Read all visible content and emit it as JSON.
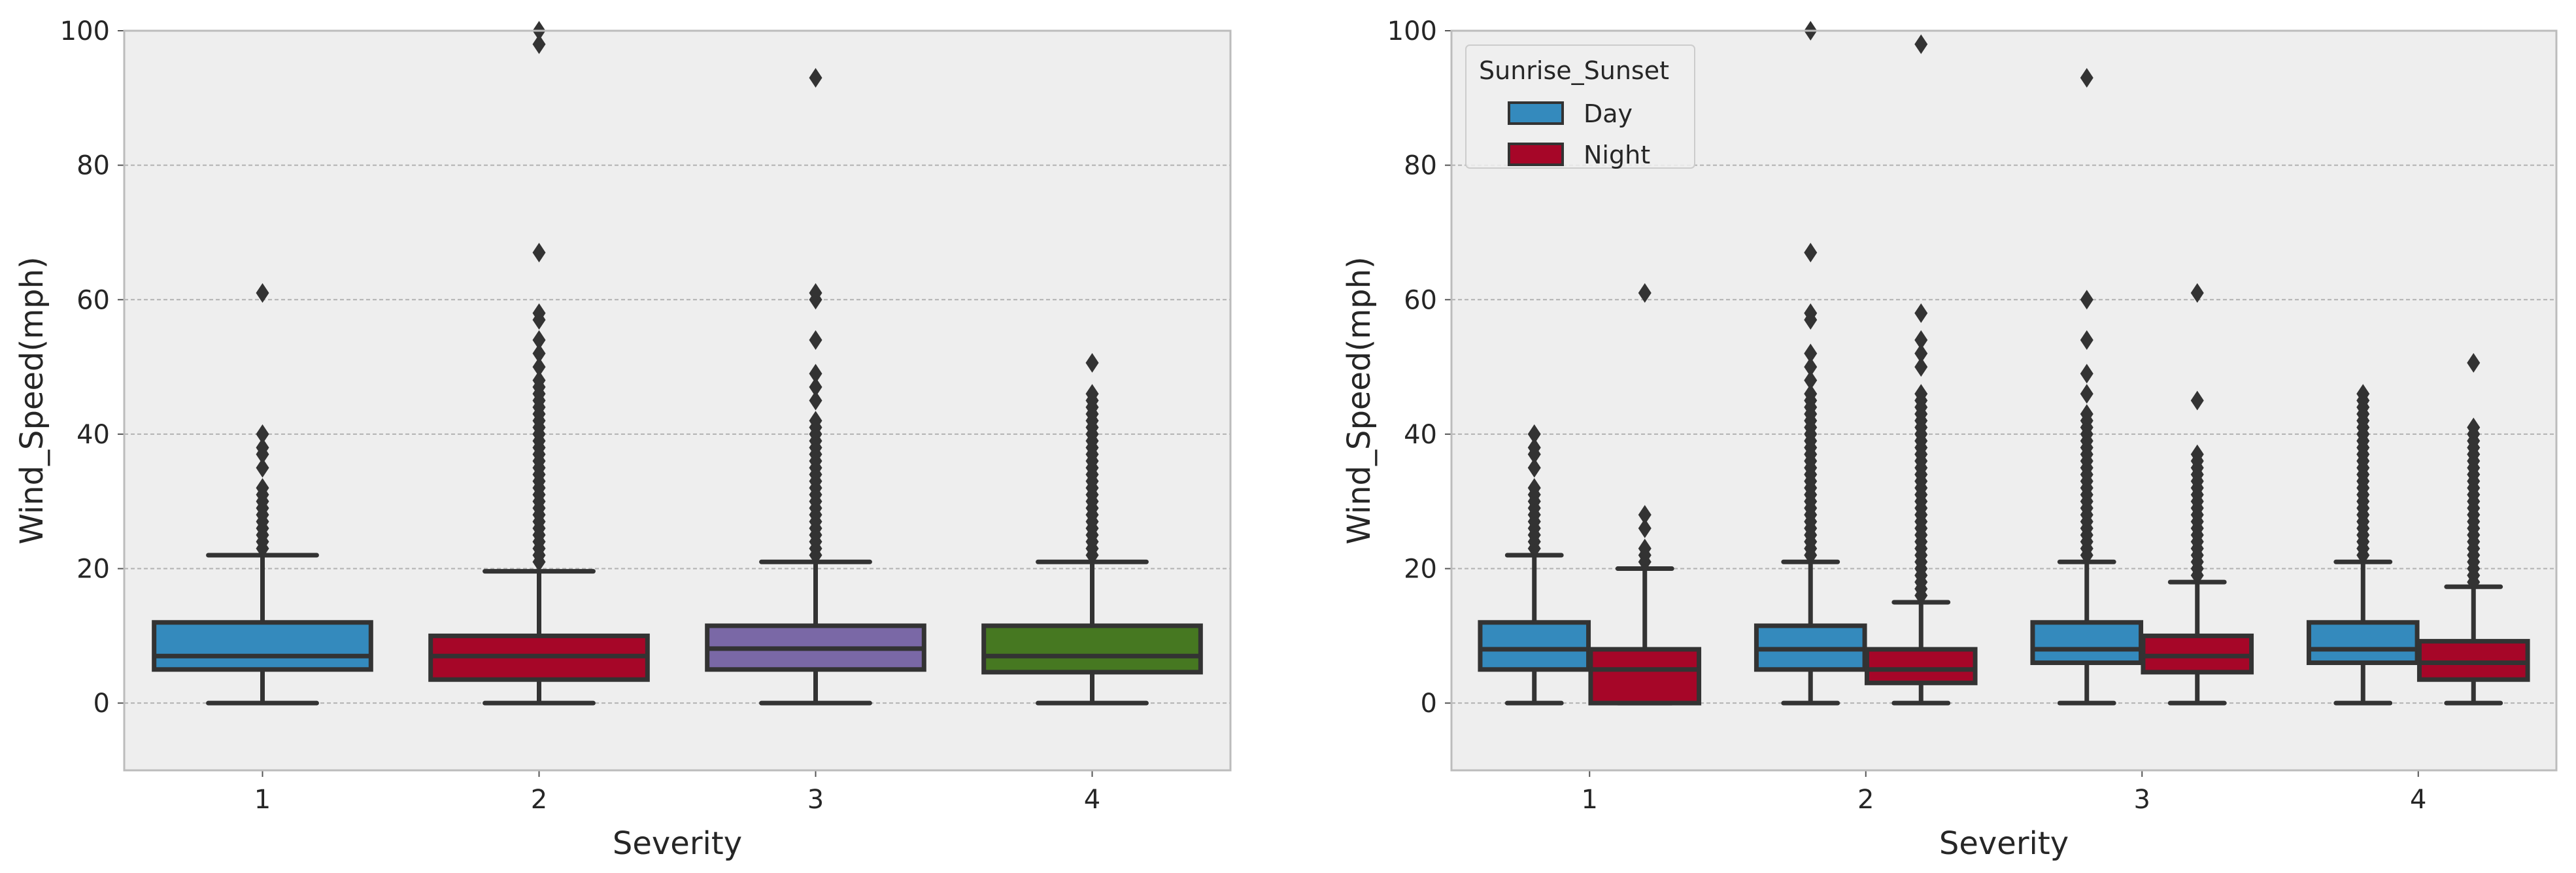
{
  "chart_data": [
    {
      "type": "box",
      "title": "",
      "xlabel": "Severity",
      "ylabel": "Wind_Speed(mph)",
      "categories": [
        "1",
        "2",
        "3",
        "4"
      ],
      "ylim": [
        -10,
        100
      ],
      "yticks": [
        0,
        20,
        40,
        60,
        80,
        100
      ],
      "grid": true,
      "legend": null,
      "series": [
        {
          "color": "#348abd",
          "boxes": [
            {
              "category": "1",
              "color": "#348abd",
              "whislo": 0,
              "q1": 5,
              "median": 7,
              "q3": 12,
              "whishi": 22,
              "fliers": [
                23,
                24,
                25,
                26,
                27,
                28,
                29,
                30,
                31,
                32,
                35,
                37,
                38,
                40,
                61
              ]
            },
            {
              "category": "2",
              "color": "#a60628",
              "whislo": 0,
              "q1": 3.5,
              "median": 7,
              "q3": 10,
              "whishi": 19.6,
              "fliers": [
                21,
                22,
                23,
                24,
                25,
                26,
                27,
                28,
                29,
                30,
                31,
                32,
                33,
                34,
                35,
                36,
                37,
                38,
                39,
                40,
                41,
                42,
                43,
                44,
                45,
                46,
                47,
                48,
                50,
                52,
                54,
                57,
                58,
                67,
                98,
                100
              ]
            },
            {
              "category": "3",
              "color": "#7a68a6",
              "whislo": 0,
              "q1": 5,
              "median": 8.1,
              "q3": 11.5,
              "whishi": 21,
              "fliers": [
                22,
                23,
                24,
                25,
                26,
                27,
                28,
                29,
                30,
                31,
                32,
                33,
                34,
                35,
                36,
                37,
                38,
                39,
                40,
                41,
                42,
                45,
                47,
                49,
                54,
                60,
                61,
                93
              ]
            },
            {
              "category": "4",
              "color": "#467821",
              "whislo": 0,
              "q1": 4.6,
              "median": 7,
              "q3": 11.5,
              "whishi": 21,
              "fliers": [
                22,
                23,
                24,
                25,
                26,
                27,
                28,
                29,
                30,
                31,
                32,
                33,
                34,
                35,
                36,
                37,
                38,
                39,
                40,
                41,
                42,
                43,
                44,
                45,
                46,
                50.6
              ]
            }
          ]
        }
      ]
    },
    {
      "type": "box",
      "title": "",
      "xlabel": "Severity",
      "ylabel": "Wind_Speed(mph)",
      "categories": [
        "1",
        "2",
        "3",
        "4"
      ],
      "ylim": [
        -10,
        100
      ],
      "yticks": [
        0,
        20,
        40,
        60,
        80,
        100
      ],
      "grid": true,
      "legend": {
        "title": "Sunrise_Sunset",
        "position": "top-left"
      },
      "series": [
        {
          "name": "Day",
          "color": "#348abd",
          "boxes": [
            {
              "category": "1",
              "whislo": 0,
              "q1": 5,
              "median": 8,
              "q3": 12,
              "whishi": 22,
              "fliers": [
                23,
                24,
                25,
                26,
                27,
                28,
                29,
                30,
                31,
                32,
                35,
                37,
                38,
                40
              ]
            },
            {
              "category": "2",
              "whislo": 0,
              "q1": 5,
              "median": 8,
              "q3": 11.5,
              "whishi": 21,
              "fliers": [
                22,
                23,
                24,
                25,
                26,
                27,
                28,
                29,
                30,
                31,
                32,
                33,
                34,
                35,
                36,
                37,
                38,
                39,
                40,
                41,
                42,
                43,
                44,
                45,
                46,
                48,
                50,
                52,
                57,
                58,
                67,
                100
              ]
            },
            {
              "category": "3",
              "whislo": 0,
              "q1": 6,
              "median": 8,
              "q3": 12,
              "whishi": 21,
              "fliers": [
                22,
                23,
                24,
                25,
                26,
                27,
                28,
                29,
                30,
                31,
                32,
                33,
                34,
                35,
                36,
                37,
                38,
                39,
                40,
                41,
                42,
                43,
                46,
                49,
                54,
                60,
                93
              ]
            },
            {
              "category": "4",
              "whislo": 0,
              "q1": 6,
              "median": 8,
              "q3": 12,
              "whishi": 21,
              "fliers": [
                22,
                23,
                24,
                25,
                26,
                27,
                28,
                29,
                30,
                31,
                32,
                33,
                34,
                35,
                36,
                37,
                38,
                39,
                40,
                41,
                42,
                43,
                44,
                45,
                46
              ]
            }
          ]
        },
        {
          "name": "Night",
          "color": "#a60628",
          "boxes": [
            {
              "category": "1",
              "whislo": 0,
              "q1": 0,
              "median": 5,
              "q3": 8,
              "whishi": 20,
              "fliers": [
                21,
                22,
                23,
                26,
                28,
                61
              ]
            },
            {
              "category": "2",
              "whislo": 0,
              "q1": 3,
              "median": 5,
              "q3": 8,
              "whishi": 15,
              "fliers": [
                16,
                17,
                18,
                19,
                20,
                21,
                22,
                23,
                24,
                25,
                26,
                27,
                28,
                29,
                30,
                31,
                32,
                33,
                34,
                35,
                36,
                37,
                38,
                39,
                40,
                41,
                42,
                43,
                44,
                45,
                46,
                50,
                52,
                54,
                58,
                98
              ]
            },
            {
              "category": "3",
              "whislo": 0,
              "q1": 4.6,
              "median": 7,
              "q3": 10,
              "whishi": 18,
              "fliers": [
                19,
                20,
                21,
                22,
                23,
                24,
                25,
                26,
                27,
                28,
                29,
                30,
                31,
                32,
                33,
                34,
                35,
                36,
                37,
                45,
                61
              ]
            },
            {
              "category": "4",
              "whislo": 0,
              "q1": 3.5,
              "median": 6,
              "q3": 9.2,
              "whishi": 17.3,
              "fliers": [
                18,
                19,
                20,
                21,
                22,
                23,
                24,
                25,
                26,
                27,
                28,
                29,
                30,
                31,
                32,
                33,
                34,
                35,
                36,
                37,
                38,
                39,
                40,
                41,
                50.6
              ]
            }
          ]
        }
      ]
    }
  ]
}
